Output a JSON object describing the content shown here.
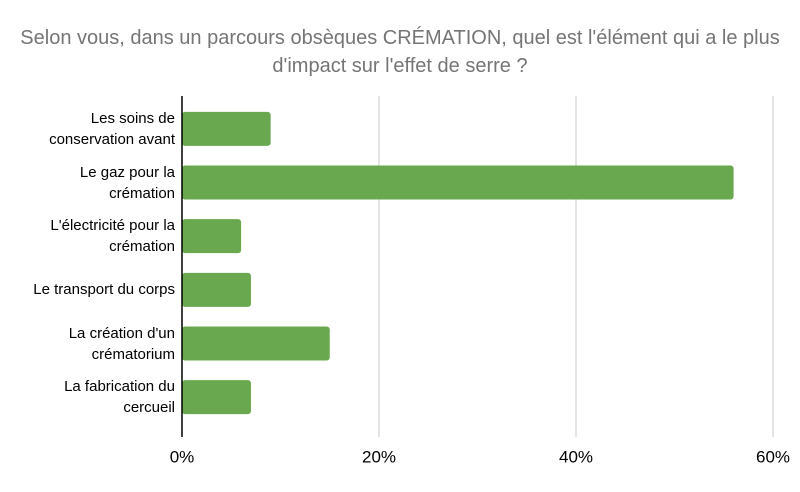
{
  "chart_data": {
    "type": "bar",
    "orientation": "horizontal",
    "title": "Selon vous, dans un parcours obsèques CRÉMATION, quel est l'élément qui a le plus d'impact sur l'effet de serre ?",
    "categories": [
      "Les soins de conservation avant",
      "Le gaz pour la crémation",
      "L'électricité pour la crémation",
      "Le transport du corps",
      "La création d'un crématorium",
      "La fabrication du cercueil"
    ],
    "values": [
      9,
      56,
      6,
      7,
      15,
      7
    ],
    "color": "#6aa84f",
    "xlim": [
      0,
      60
    ],
    "xticks": [
      {
        "value": 0,
        "label": "0%"
      },
      {
        "value": 20,
        "label": "20%"
      },
      {
        "value": 40,
        "label": "40%"
      },
      {
        "value": 60,
        "label": "60%"
      }
    ],
    "grid": true
  }
}
